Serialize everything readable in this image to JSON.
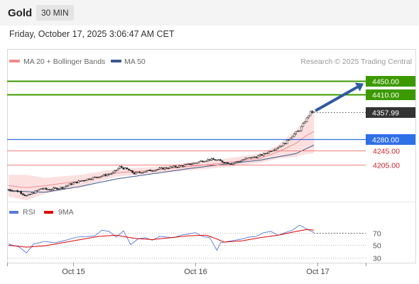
{
  "header": {
    "title": "Gold",
    "timeframe": "30 MIN"
  },
  "timestamp": "Friday, October 17, 2025 3:06:47 AM CET",
  "credit": "Research © 2025 Trading Central",
  "legend": [
    {
      "label": "MA 20 + Bollinger Bands",
      "color": "#f08c8c"
    },
    {
      "label": "MA 50",
      "color": "#3a5a8c"
    }
  ],
  "rsi_legend": [
    {
      "label": "RSI",
      "color": "#5577dd"
    },
    {
      "label": "9MA",
      "color": "#dd0000"
    }
  ],
  "colors": {
    "resistance": "#3c9a00",
    "current": "#333333",
    "pivot": "#2f6fe8",
    "support": "#f08080",
    "arrow": "#2f5aa0",
    "bb_fill": "#fbdada",
    "candle_up": "#ffffff",
    "candle_down": "#222222"
  },
  "chart_data": [
    {
      "type": "candlestick",
      "x_axis": {
        "tick_labels": [
          "Oct 15",
          "Oct 16",
          "Oct 17"
        ]
      },
      "y_range": [
        4105,
        4470
      ],
      "bars_per_day": 48,
      "levels": [
        {
          "value": 4450.0,
          "label": "4450.00",
          "kind": "resistance"
        },
        {
          "value": 4410.0,
          "label": "4410.00",
          "kind": "resistance"
        },
        {
          "value": 4357.99,
          "label": "4357.99",
          "kind": "current"
        },
        {
          "value": 4280.0,
          "label": "4280.00",
          "kind": "pivot"
        },
        {
          "value": 4245.0,
          "label": "4245.00",
          "kind": "support"
        },
        {
          "value": 4205.0,
          "label": "4205.00",
          "kind": "support"
        }
      ],
      "close_path": [
        [
          0,
          4132
        ],
        [
          6,
          4126
        ],
        [
          10,
          4113
        ],
        [
          14,
          4123
        ],
        [
          18,
          4135
        ],
        [
          22,
          4132
        ],
        [
          30,
          4138
        ],
        [
          34,
          4147
        ],
        [
          40,
          4157
        ],
        [
          46,
          4165
        ],
        [
          52,
          4172
        ],
        [
          58,
          4180
        ],
        [
          62,
          4198
        ],
        [
          66,
          4191
        ],
        [
          70,
          4179
        ],
        [
          74,
          4183
        ],
        [
          80,
          4189
        ],
        [
          86,
          4194
        ],
        [
          92,
          4198
        ],
        [
          98,
          4203
        ],
        [
          104,
          4210
        ],
        [
          108,
          4216
        ],
        [
          112,
          4220
        ],
        [
          116,
          4218
        ],
        [
          120,
          4212
        ],
        [
          124,
          4208
        ],
        [
          128,
          4214
        ],
        [
          132,
          4222
        ],
        [
          138,
          4228
        ],
        [
          142,
          4235
        ],
        [
          146,
          4246
        ],
        [
          150,
          4256
        ],
        [
          154,
          4268
        ],
        [
          158,
          4290
        ],
        [
          162,
          4306
        ],
        [
          166,
          4340
        ],
        [
          168,
          4358
        ],
        [
          170,
          4357.99
        ]
      ],
      "ma50_path": [
        [
          0,
          4128
        ],
        [
          20,
          4124
        ],
        [
          40,
          4141
        ],
        [
          60,
          4163
        ],
        [
          80,
          4178
        ],
        [
          100,
          4193
        ],
        [
          120,
          4206
        ],
        [
          140,
          4218
        ],
        [
          160,
          4237
        ],
        [
          170,
          4262
        ]
      ],
      "bb_upper_path": [
        [
          0,
          4175
        ],
        [
          10,
          4175
        ],
        [
          20,
          4166
        ],
        [
          40,
          4175
        ],
        [
          60,
          4192
        ],
        [
          80,
          4198
        ],
        [
          100,
          4210
        ],
        [
          120,
          4222
        ],
        [
          140,
          4237
        ],
        [
          150,
          4262
        ],
        [
          160,
          4306
        ],
        [
          166,
          4345
        ],
        [
          170,
          4365
        ]
      ],
      "bb_lower_path": [
        [
          0,
          4112
        ],
        [
          10,
          4100
        ],
        [
          20,
          4120
        ],
        [
          40,
          4140
        ],
        [
          60,
          4170
        ],
        [
          80,
          4178
        ],
        [
          100,
          4188
        ],
        [
          120,
          4197
        ],
        [
          140,
          4210
        ],
        [
          150,
          4222
        ],
        [
          160,
          4228
        ],
        [
          166,
          4236
        ],
        [
          170,
          4238
        ]
      ]
    },
    {
      "type": "line",
      "name": "RSI",
      "y_ticks": [
        70,
        50,
        30
      ],
      "y_range": [
        20,
        90
      ],
      "rsi_path": [
        [
          0,
          52
        ],
        [
          6,
          47
        ],
        [
          10,
          38
        ],
        [
          14,
          52
        ],
        [
          20,
          56
        ],
        [
          26,
          54
        ],
        [
          32,
          58
        ],
        [
          38,
          63
        ],
        [
          44,
          64
        ],
        [
          48,
          65
        ],
        [
          52,
          74
        ],
        [
          56,
          72
        ],
        [
          60,
          63
        ],
        [
          64,
          73
        ],
        [
          68,
          51
        ],
        [
          72,
          60
        ],
        [
          76,
          62
        ],
        [
          80,
          58
        ],
        [
          84,
          64
        ],
        [
          88,
          63
        ],
        [
          92,
          62
        ],
        [
          96,
          66
        ],
        [
          100,
          68
        ],
        [
          104,
          70
        ],
        [
          108,
          64
        ],
        [
          112,
          62
        ],
        [
          116,
          42
        ],
        [
          118,
          54
        ],
        [
          122,
          56
        ],
        [
          126,
          58
        ],
        [
          130,
          60
        ],
        [
          134,
          63
        ],
        [
          138,
          64
        ],
        [
          142,
          70
        ],
        [
          146,
          72
        ],
        [
          150,
          66
        ],
        [
          154,
          70
        ],
        [
          158,
          74
        ],
        [
          162,
          82
        ],
        [
          166,
          76
        ],
        [
          170,
          70
        ]
      ],
      "ma_path": [
        [
          0,
          50
        ],
        [
          10,
          47
        ],
        [
          20,
          49
        ],
        [
          30,
          54
        ],
        [
          40,
          59
        ],
        [
          50,
          64
        ],
        [
          60,
          66
        ],
        [
          70,
          61
        ],
        [
          80,
          59
        ],
        [
          90,
          62
        ],
        [
          100,
          65
        ],
        [
          110,
          66
        ],
        [
          116,
          60
        ],
        [
          120,
          55
        ],
        [
          130,
          57
        ],
        [
          140,
          62
        ],
        [
          150,
          66
        ],
        [
          160,
          72
        ],
        [
          166,
          75
        ],
        [
          170,
          74
        ]
      ]
    }
  ]
}
